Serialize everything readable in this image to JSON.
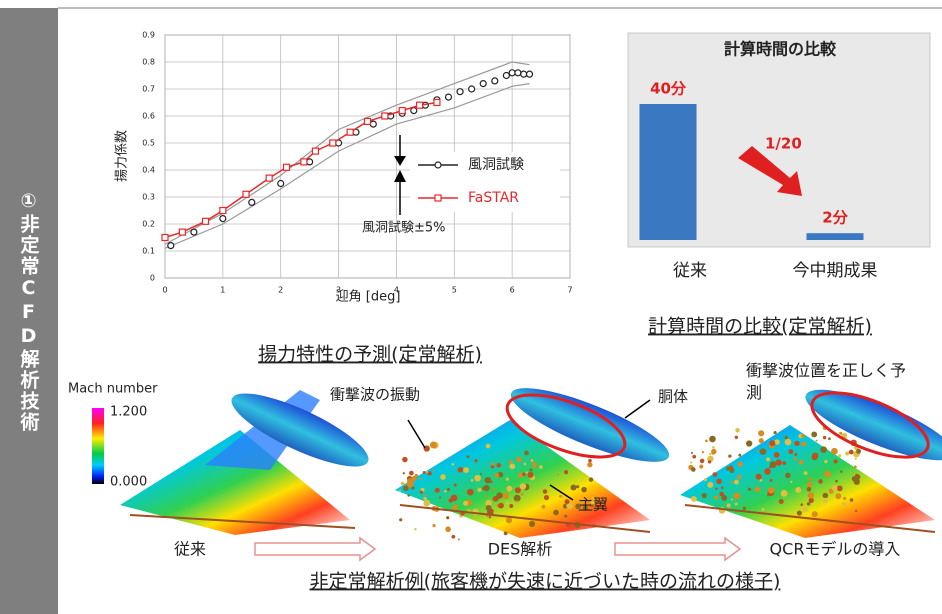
{
  "side_label": "①非定常CFD解析技術",
  "chart_data": [
    {
      "type": "line",
      "y_label": "揚力係数",
      "x_label": "迎角 [deg]",
      "caption": "揚力特性の予測(定常解析)",
      "annotation": "風洞試験±5%",
      "xlim": [
        0,
        7
      ],
      "xticks": [
        0,
        1,
        2,
        3,
        4,
        5,
        6,
        7
      ],
      "ylim": [
        0,
        0.9
      ],
      "yticks": [
        0,
        0.1,
        0.2,
        0.3,
        0.4,
        0.5,
        0.6,
        0.7,
        0.8,
        0.9
      ],
      "grid": true,
      "series": [
        {
          "color": "#999999",
          "line": true,
          "marker": null,
          "x": [
            0,
            1,
            2,
            3,
            4,
            5,
            6,
            6.3
          ],
          "values": [
            0.125,
            0.24,
            0.38,
            0.55,
            0.64,
            0.72,
            0.8,
            0.79
          ]
        },
        {
          "color": "#999999",
          "line": true,
          "marker": null,
          "x": [
            0,
            1,
            2,
            3,
            4,
            5,
            6,
            6.3
          ],
          "values": [
            0.11,
            0.2,
            0.33,
            0.47,
            0.57,
            0.63,
            0.71,
            0.72
          ]
        },
        {
          "name": "風洞試験",
          "color": "#222222",
          "line": false,
          "marker": "circle",
          "x": [
            0.1,
            0.5,
            1,
            1.5,
            2,
            2.5,
            3,
            3.3,
            3.6,
            3.9,
            4.1,
            4.3,
            4.5,
            4.7,
            4.9,
            5.1,
            5.3,
            5.5,
            5.7,
            5.9,
            6.0,
            6.1,
            6.2,
            6.3
          ],
          "values": [
            0.12,
            0.17,
            0.22,
            0.28,
            0.35,
            0.43,
            0.5,
            0.54,
            0.57,
            0.6,
            0.61,
            0.62,
            0.64,
            0.66,
            0.67,
            0.69,
            0.7,
            0.72,
            0.73,
            0.75,
            0.76,
            0.76,
            0.755,
            0.755
          ]
        },
        {
          "name": "FaSTAR",
          "color": "#e8282b",
          "line": true,
          "marker": "square",
          "x": [
            0,
            0.3,
            0.7,
            1,
            1.4,
            1.8,
            2.1,
            2.4,
            2.6,
            2.9,
            3.2,
            3.5,
            3.8,
            4.1,
            4.4,
            4.7
          ],
          "values": [
            0.15,
            0.17,
            0.21,
            0.25,
            0.31,
            0.37,
            0.41,
            0.43,
            0.47,
            0.5,
            0.54,
            0.58,
            0.6,
            0.62,
            0.64,
            0.65
          ]
        }
      ]
    },
    {
      "type": "bar",
      "title": "計算時間の比較",
      "caption": "計算時間の比較(定常解析)",
      "annotation": "1/20",
      "categories": [
        "従来",
        "今中期成果"
      ],
      "values": [
        40,
        2
      ],
      "value_labels": [
        "40分",
        "2分"
      ],
      "color": "#3b78c2"
    }
  ],
  "flow_example": {
    "caption": "非定常解析例(旅客機が失速に近づいた時の流れの様子)",
    "legend_title": "Mach number",
    "legend_max": "1.200",
    "legend_min": "0.000",
    "panels": [
      "従来",
      "DES解析",
      "QCRモデルの導入"
    ],
    "annotations": [
      "衝撃波の振動",
      "胴体",
      "主翼",
      "衝撃波位置を正しく予測"
    ]
  }
}
